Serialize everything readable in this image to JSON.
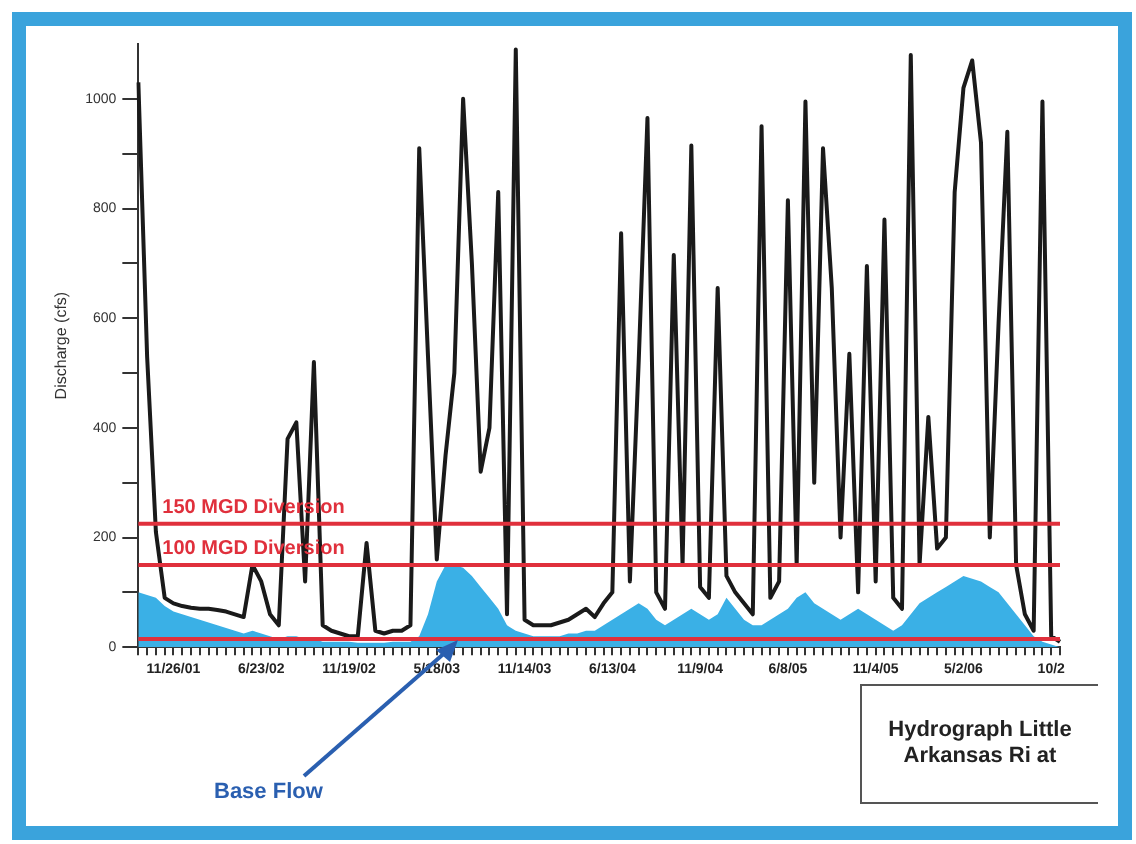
{
  "chart_data": {
    "type": "line",
    "title": "Hydrograph Little Arkansas Ri at",
    "ylabel": "Discharge (cfs)",
    "annotations": [
      "Base Flow"
    ],
    "categories": [
      null,
      null,
      null,
      null,
      "11/26/01",
      null,
      null,
      null,
      null,
      null,
      null,
      null,
      null,
      null,
      "6/23/02",
      null,
      null,
      null,
      null,
      null,
      null,
      null,
      null,
      null,
      "11/19/02",
      null,
      null,
      null,
      null,
      null,
      null,
      null,
      null,
      null,
      "5/18/03",
      null,
      null,
      null,
      null,
      null,
      null,
      null,
      null,
      null,
      "11/14/03",
      null,
      null,
      null,
      null,
      null,
      null,
      null,
      null,
      null,
      "6/13/04",
      null,
      null,
      null,
      null,
      null,
      null,
      null,
      null,
      null,
      "11/9/04",
      null,
      null,
      null,
      null,
      null,
      null,
      null,
      null,
      null,
      "6/8/05",
      null,
      null,
      null,
      null,
      null,
      null,
      null,
      null,
      null,
      "11/4/05",
      null,
      null,
      null,
      null,
      null,
      null,
      null,
      null,
      null,
      "5/2/06",
      null,
      null,
      null,
      null,
      null,
      null,
      null,
      null,
      null,
      "10/2",
      null
    ],
    "series": [
      {
        "type": "area",
        "color": "#3ab0e6",
        "values": [
          100,
          95,
          90,
          75,
          65,
          60,
          55,
          50,
          45,
          40,
          35,
          30,
          25,
          30,
          25,
          20,
          15,
          20,
          20,
          15,
          15,
          10,
          10,
          10,
          10,
          8,
          8,
          8,
          8,
          10,
          10,
          10,
          20,
          60,
          120,
          150,
          150,
          145,
          130,
          110,
          90,
          70,
          40,
          30,
          25,
          20,
          20,
          20,
          20,
          25,
          25,
          30,
          30,
          40,
          50,
          60,
          70,
          80,
          70,
          50,
          40,
          50,
          60,
          70,
          60,
          50,
          60,
          90,
          70,
          50,
          40,
          40,
          50,
          60,
          70,
          90,
          100,
          80,
          70,
          60,
          50,
          60,
          70,
          60,
          50,
          40,
          30,
          40,
          60,
          80,
          90,
          100,
          110,
          120,
          130,
          125,
          120,
          110,
          100,
          80,
          60,
          40,
          20,
          10,
          5,
          0
        ]
      },
      {
        "color": "#1a1a1a",
        "values": [
          1030,
          530,
          210,
          90,
          80,
          75,
          72,
          70,
          70,
          68,
          65,
          60,
          55,
          150,
          120,
          60,
          40,
          380,
          410,
          120,
          520,
          40,
          30,
          25,
          20,
          20,
          190,
          30,
          25,
          30,
          30,
          40,
          910,
          530,
          160,
          350,
          500,
          1000,
          700,
          320,
          400,
          830,
          60,
          1090,
          50,
          40,
          40,
          40,
          45,
          50,
          60,
          70,
          55,
          80,
          100,
          755,
          120,
          520,
          965,
          100,
          70,
          715,
          150,
          915,
          110,
          90,
          655,
          130,
          100,
          80,
          60,
          950,
          90,
          120,
          815,
          150,
          995,
          300,
          910,
          655,
          200,
          535,
          100,
          695,
          120,
          780,
          90,
          70,
          1080,
          150,
          420,
          180,
          200,
          830,
          1020,
          1070,
          920,
          200,
          590,
          940,
          150,
          60,
          30,
          995,
          20,
          10
        ]
      }
    ],
    "ylim": [
      0,
      1100
    ],
    "yticks": [
      0,
      {
        "value": 100,
        "label": null
      },
      200,
      {
        "value": 300,
        "label": null
      },
      400,
      {
        "value": 500,
        "label": null
      },
      600,
      {
        "value": 700,
        "label": null
      },
      800,
      {
        "value": 900,
        "label": null
      },
      1000
    ],
    "ref_lines": [
      {
        "axis": "y",
        "value": 225,
        "label": "150 MGD Diversion",
        "color": "#e0303c"
      },
      {
        "axis": "y",
        "value": 150,
        "label": "100 MGD Diversion",
        "color": "#e0303c"
      },
      {
        "axis": "y",
        "value": 15,
        "label": null,
        "color": "#e0303c"
      }
    ],
    "grid": false,
    "legend": false
  }
}
